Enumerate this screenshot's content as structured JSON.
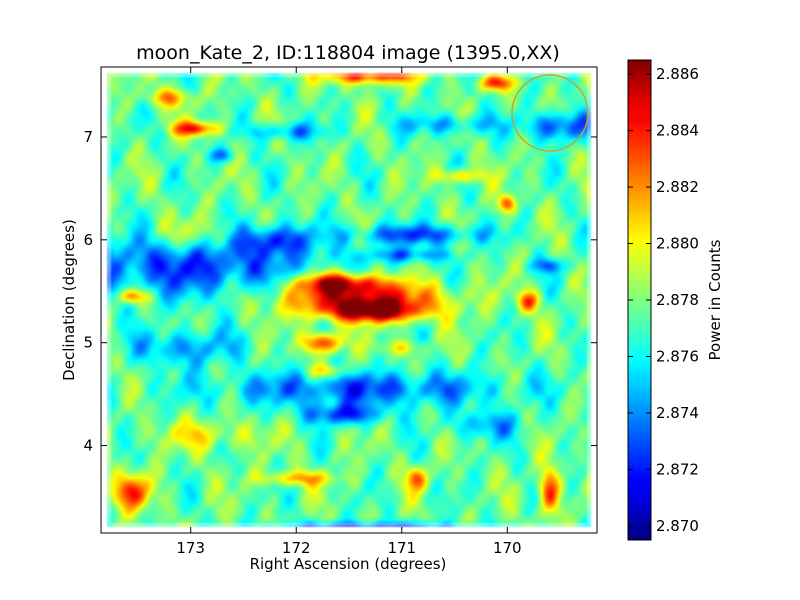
{
  "chart_data": {
    "type": "heatmap",
    "title": "moon_Kate_2, ID:118804 image (1395.0,XX)",
    "xlabel": "Right Ascension (degrees)",
    "ylabel": "Declination (degrees)",
    "colorbar_label": "Power in Counts",
    "xlim": [
      173.85,
      169.15
    ],
    "ylim": [
      3.15,
      7.68
    ],
    "x_ticks": [
      173,
      172,
      171,
      170
    ],
    "x_tick_labels": [
      "173",
      "172",
      "171",
      "170"
    ],
    "y_ticks": [
      4,
      5,
      6,
      7
    ],
    "y_tick_labels": [
      "4",
      "5",
      "6",
      "7"
    ],
    "colorbar_range": [
      2.8695,
      2.8865
    ],
    "colorbar_ticks": [
      2.87,
      2.872,
      2.874,
      2.876,
      2.878,
      2.88,
      2.882,
      2.884,
      2.886
    ],
    "colorbar_tick_labels": [
      "2.870",
      "2.872",
      "2.874",
      "2.876",
      "2.878",
      "2.880",
      "2.882",
      "2.884",
      "2.886"
    ],
    "colormap": "jet",
    "background_value": 2.8775,
    "blobs": [
      {
        "x": 171.4,
        "y": 5.42,
        "sx": 0.55,
        "sy": 0.12,
        "v": 2.885
      },
      {
        "x": 171.6,
        "y": 5.58,
        "sx": 0.3,
        "sy": 0.07,
        "v": 2.8845
      },
      {
        "x": 171.25,
        "y": 5.3,
        "sx": 0.3,
        "sy": 0.07,
        "v": 2.8842
      },
      {
        "x": 171.75,
        "y": 5.0,
        "sx": 0.12,
        "sy": 0.07,
        "v": 2.8845
      },
      {
        "x": 171.3,
        "y": 7.6,
        "sx": 0.3,
        "sy": 0.06,
        "v": 2.8845
      },
      {
        "x": 172.95,
        "y": 7.08,
        "sx": 0.15,
        "sy": 0.05,
        "v": 2.884
      },
      {
        "x": 170.1,
        "y": 7.52,
        "sx": 0.12,
        "sy": 0.05,
        "v": 2.883
      },
      {
        "x": 170.45,
        "y": 6.62,
        "sx": 0.15,
        "sy": 0.05,
        "v": 2.8815
      },
      {
        "x": 170.0,
        "y": 6.35,
        "sx": 0.06,
        "sy": 0.06,
        "v": 2.883
      },
      {
        "x": 173.55,
        "y": 3.55,
        "sx": 0.12,
        "sy": 0.12,
        "v": 2.8835
      },
      {
        "x": 169.6,
        "y": 3.55,
        "sx": 0.07,
        "sy": 0.15,
        "v": 2.884
      },
      {
        "x": 170.85,
        "y": 3.68,
        "sx": 0.07,
        "sy": 0.08,
        "v": 2.8825
      },
      {
        "x": 169.8,
        "y": 5.4,
        "sx": 0.07,
        "sy": 0.07,
        "v": 2.883
      },
      {
        "x": 173.55,
        "y": 5.45,
        "sx": 0.1,
        "sy": 0.05,
        "v": 2.883
      },
      {
        "x": 173.0,
        "y": 6.05,
        "sx": 0.3,
        "sy": 0.12,
        "v": 2.88
      },
      {
        "x": 172.85,
        "y": 4.1,
        "sx": 0.35,
        "sy": 0.1,
        "v": 2.88
      },
      {
        "x": 172.0,
        "y": 3.68,
        "sx": 0.25,
        "sy": 0.05,
        "v": 2.8815
      },
      {
        "x": 171.7,
        "y": 4.72,
        "sx": 0.12,
        "sy": 0.05,
        "v": 2.881
      },
      {
        "x": 173.2,
        "y": 7.38,
        "sx": 0.15,
        "sy": 0.06,
        "v": 2.8815
      },
      {
        "x": 171.0,
        "y": 4.95,
        "sx": 0.15,
        "sy": 0.05,
        "v": 2.88
      },
      {
        "x": 173.0,
        "y": 5.75,
        "sx": 0.85,
        "sy": 0.22,
        "v": 2.8725
      },
      {
        "x": 172.2,
        "y": 6.0,
        "sx": 0.22,
        "sy": 0.1,
        "v": 2.873
      },
      {
        "x": 170.85,
        "y": 6.05,
        "sx": 0.45,
        "sy": 0.07,
        "v": 2.873
      },
      {
        "x": 170.95,
        "y": 5.85,
        "sx": 0.3,
        "sy": 0.05,
        "v": 2.874
      },
      {
        "x": 171.4,
        "y": 4.55,
        "sx": 0.95,
        "sy": 0.12,
        "v": 2.873
      },
      {
        "x": 171.55,
        "y": 4.3,
        "sx": 0.25,
        "sy": 0.07,
        "v": 2.8725
      },
      {
        "x": 169.5,
        "y": 7.1,
        "sx": 0.22,
        "sy": 0.1,
        "v": 2.8725
      },
      {
        "x": 171.3,
        "y": 3.2,
        "sx": 0.6,
        "sy": 0.04,
        "v": 2.872
      },
      {
        "x": 173.05,
        "y": 4.95,
        "sx": 0.35,
        "sy": 0.12,
        "v": 2.874
      },
      {
        "x": 172.1,
        "y": 7.05,
        "sx": 0.25,
        "sy": 0.06,
        "v": 2.874
      },
      {
        "x": 170.55,
        "y": 7.12,
        "sx": 0.35,
        "sy": 0.07,
        "v": 2.8745
      },
      {
        "x": 169.6,
        "y": 5.75,
        "sx": 0.12,
        "sy": 0.05,
        "v": 2.874
      },
      {
        "x": 172.7,
        "y": 6.82,
        "sx": 0.08,
        "sy": 0.05,
        "v": 2.8735
      },
      {
        "x": 170.2,
        "y": 4.2,
        "sx": 0.25,
        "sy": 0.1,
        "v": 2.8745
      }
    ]
  }
}
